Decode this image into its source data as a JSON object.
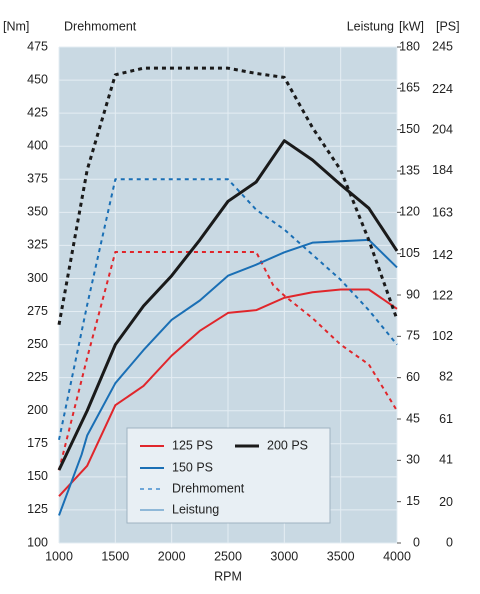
{
  "chart_data": {
    "type": "line",
    "y_label": "[Nm]",
    "y_title": "Drehmoment",
    "y2_title": "Leistung",
    "y2_label": "[kW]",
    "y3_label": "[PS]",
    "x_label": "RPM",
    "xlim": [
      1000,
      4000
    ],
    "xticks": [
      1000,
      1500,
      2000,
      2500,
      3000,
      3500,
      4000
    ],
    "ylim": [
      100,
      475
    ],
    "yticks": [
      100,
      125,
      150,
      175,
      200,
      225,
      250,
      275,
      300,
      325,
      350,
      375,
      400,
      425,
      450,
      475
    ],
    "y2lim": [
      0,
      180
    ],
    "y2ticks": [
      0,
      15,
      30,
      45,
      60,
      75,
      90,
      105,
      120,
      135,
      150,
      165,
      180
    ],
    "y3lim": [
      0,
      245
    ],
    "y3ticks": [
      0,
      20,
      41,
      61,
      82,
      102,
      122,
      142,
      163,
      184,
      204,
      224,
      245
    ],
    "grid": true,
    "background": "#c9d9e3",
    "series": [
      {
        "name": "125 PS",
        "color": "#e0262b",
        "line_width": 2,
        "torque": {
          "x": [
            1000,
            1250,
            1500,
            2000,
            2500,
            2750,
            2900,
            3000,
            3250,
            3500,
            3750,
            4000
          ],
          "values": [
            155,
            240,
            320,
            320,
            320,
            320,
            295,
            287,
            270,
            250,
            235,
            200
          ]
        },
        "power": {
          "x": [
            1000,
            1250,
            1500,
            1750,
            2000,
            2250,
            2500,
            2750,
            3000,
            3250,
            3500,
            3750,
            4000
          ],
          "values": [
            17,
            28,
            50,
            57,
            68,
            77,
            83.5,
            84.5,
            89,
            91,
            92,
            92,
            85
          ]
        }
      },
      {
        "name": "150 PS",
        "color": "#1a6fb5",
        "line_width": 2,
        "torque": {
          "x": [
            1000,
            1250,
            1500,
            2000,
            2500,
            2750,
            3000,
            3250,
            3500,
            3750,
            4000
          ],
          "values": [
            178,
            280,
            375,
            375,
            375,
            352,
            337,
            318,
            299,
            276,
            250
          ]
        },
        "power": {
          "x": [
            1000,
            1200,
            1250,
            1500,
            1750,
            2000,
            2250,
            2500,
            2750,
            3000,
            3250,
            3500,
            3750,
            4000
          ],
          "values": [
            10,
            32,
            39,
            58,
            70,
            81,
            88,
            97,
            101,
            105.5,
            109,
            109.5,
            110,
            100
          ]
        }
      },
      {
        "name": "200 PS",
        "color": "#1a1a1a",
        "line_width": 3,
        "torque": {
          "x": [
            1000,
            1250,
            1500,
            1750,
            2000,
            2500,
            2750,
            3000,
            3250,
            3500,
            3750,
            4000
          ],
          "values": [
            265,
            382,
            454,
            459,
            459,
            459,
            455,
            452,
            414,
            382,
            329,
            269
          ]
        },
        "power": {
          "x": [
            1000,
            1250,
            1500,
            1750,
            2000,
            2250,
            2500,
            2750,
            3000,
            3250,
            3500,
            3750,
            4000
          ],
          "values": [
            26.5,
            48,
            72,
            86,
            97,
            110,
            124,
            131,
            146,
            139,
            130,
            121.5,
            106
          ]
        }
      }
    ],
    "line_styles": [
      {
        "name": "Drehmoment",
        "dashed": true,
        "color": "#6ea6d8"
      },
      {
        "name": "Leistung",
        "dashed": false,
        "color": "#8fb8d8"
      }
    ]
  }
}
